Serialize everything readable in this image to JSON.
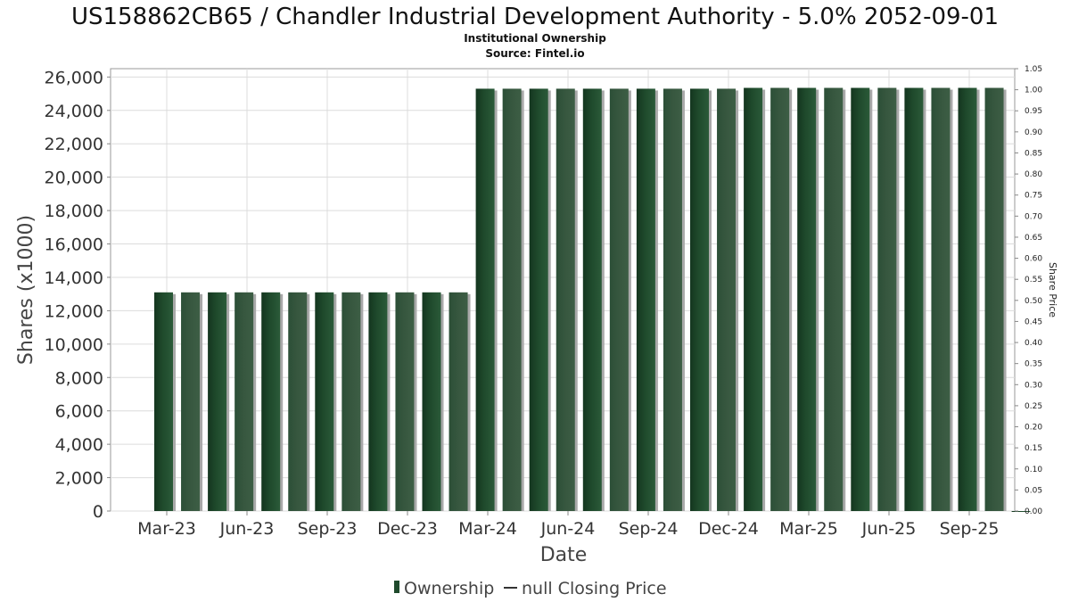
{
  "chart_data": {
    "type": "bar",
    "title": "US158862CB65 / Chandler Industrial Development Authority - 5.0% 2052-09-01",
    "subtitle_lines": [
      "Institutional Ownership",
      "Source: Fintel.io"
    ],
    "xlabel": "Date",
    "ylabel": "Shares (x1000)",
    "ylabel_right": "Share Price",
    "ylim": [
      0,
      26500
    ],
    "ylim_right": [
      0,
      1.05
    ],
    "yticks": [
      0,
      2000,
      4000,
      6000,
      8000,
      10000,
      12000,
      14000,
      16000,
      18000,
      20000,
      22000,
      24000,
      26000
    ],
    "yticks_labels": [
      "0",
      "2,000",
      "4,000",
      "6,000",
      "8,000",
      "10,000",
      "12,000",
      "14,000",
      "16,000",
      "18,000",
      "20,000",
      "22,000",
      "24,000",
      "26,000"
    ],
    "yticks_right": [
      "0.00",
      "0.05",
      "0.10",
      "0.15",
      "0.20",
      "0.25",
      "0.30",
      "0.35",
      "0.40",
      "0.45",
      "0.50",
      "0.55",
      "0.60",
      "0.65",
      "0.70",
      "0.75",
      "0.80",
      "0.85",
      "0.90",
      "0.95",
      "1.00",
      "1.05"
    ],
    "x_ticks": [
      "Mar-23",
      "Jun-23",
      "Sep-23",
      "Dec-23",
      "Mar-24",
      "Jun-24",
      "Sep-24",
      "Dec-24",
      "Mar-25",
      "Jun-25",
      "Sep-25"
    ],
    "series": [
      {
        "name": "Ownership",
        "color": "#1f4a2c",
        "values": [
          13100,
          13100,
          13100,
          13100,
          13100,
          13100,
          13100,
          13100,
          13100,
          13100,
          13100,
          13100,
          25300,
          25300,
          25300,
          25300,
          25300,
          25300,
          25300,
          25300,
          25300,
          25300,
          25350,
          25350,
          25350,
          25350,
          25350,
          25350,
          25350,
          25350,
          25350,
          25350,
          0
        ]
      }
    ],
    "legend": {
      "position": "bottom-center",
      "items": [
        {
          "label": "Ownership",
          "symbol": "bar",
          "color": "#1f4a2c"
        },
        {
          "label": "null Closing Price",
          "symbol": "line",
          "color": "#333333"
        }
      ]
    },
    "grid": true
  }
}
